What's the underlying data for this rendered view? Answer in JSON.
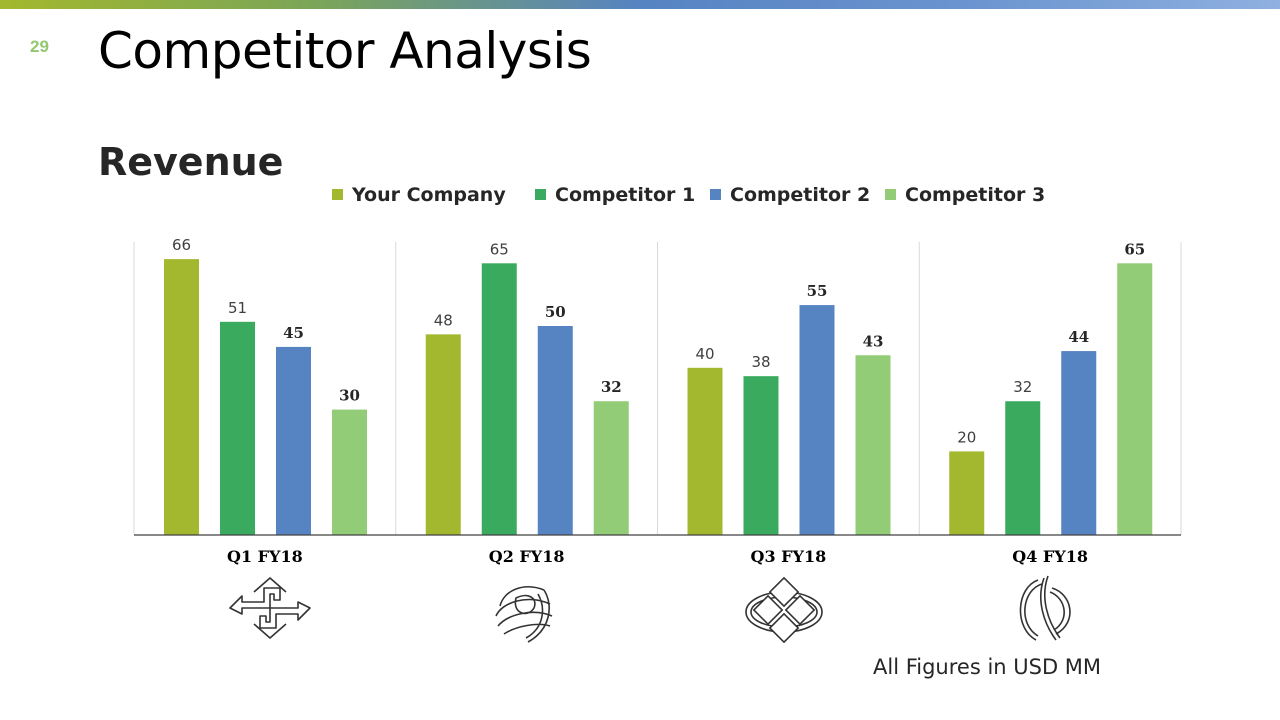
{
  "page": {
    "number": "29",
    "title": "Competitor Analysis",
    "section_title": "Revenue",
    "footnote": "All Figures in USD MM"
  },
  "chart_data": {
    "type": "bar",
    "title": "",
    "xlabel": "",
    "ylabel": "",
    "ylim": [
      0,
      70
    ],
    "grid": false,
    "legend_position": "top",
    "categories": [
      "Q1 FY18",
      "Q2 FY18",
      "Q3 FY18",
      "Q4 FY18"
    ],
    "category_icons": [
      "interlocking-arrows-icon",
      "swirl-sphere-icon",
      "diamond-cluster-icon",
      "leaf-circle-icon"
    ],
    "series": [
      {
        "name": "Your Company",
        "color": "#a3b82e",
        "values": [
          66,
          48,
          40,
          20
        ]
      },
      {
        "name": "Competitor 1",
        "color": "#3aaa5f",
        "values": [
          51,
          65,
          38,
          32
        ]
      },
      {
        "name": "Competitor 2",
        "color": "#5683c2",
        "values": [
          45,
          50,
          55,
          44
        ]
      },
      {
        "name": "Competitor 3",
        "color": "#92cc76",
        "values": [
          30,
          32,
          43,
          65
        ]
      }
    ],
    "bold_labels": [
      [
        false,
        false,
        false,
        false
      ],
      [
        false,
        false,
        false,
        false
      ],
      [
        true,
        true,
        true,
        true
      ],
      [
        true,
        true,
        true,
        true
      ]
    ]
  }
}
